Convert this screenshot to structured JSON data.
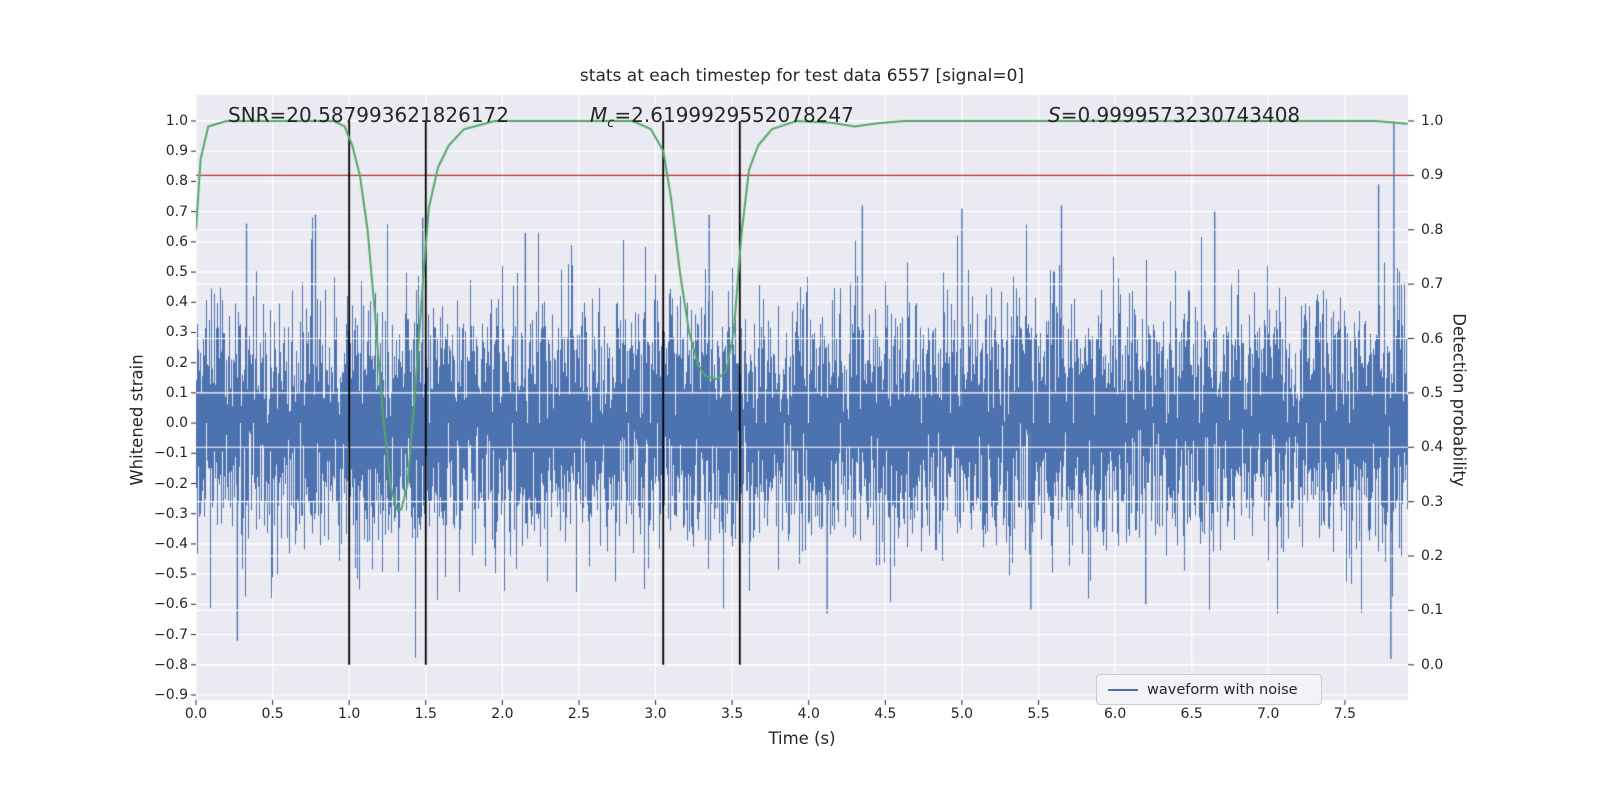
{
  "figure": {
    "title": "stats at each timestep for test data 6557 [signal=0]"
  },
  "axes": {
    "xlabel": "Time (s)",
    "ylabel_left": "Whitened strain",
    "ylabel_right": "Detection probability"
  },
  "annotations": {
    "snr": "SNR=20.587993621826172",
    "mc": {
      "var": "M",
      "sub": "c",
      "rest": "=2.6199929552078247"
    },
    "s": {
      "var": "S",
      "rest": "=0.9999573230743408"
    }
  },
  "legend": {
    "label": "waveform with noise",
    "color": "#4c72b0"
  },
  "chart_data": {
    "type": "line",
    "title": "stats at each timestep for test data 6557 [signal=0]",
    "xlabel": "Time (s)",
    "ylabel_left": "Whitened strain",
    "ylabel_right": "Detection probability",
    "xlim": [
      0.0,
      7.91
    ],
    "ylim_left": [
      -0.917,
      1.086
    ],
    "ylim_right_maps_to_left": [
      -0.8,
      1.0
    ],
    "grid": {
      "color": "#ffffff",
      "background": "#eaeaf2",
      "grid_on": true
    },
    "x_ticks": {
      "values": [
        0.0,
        0.5,
        1.0,
        1.5,
        2.0,
        2.5,
        3.0,
        3.5,
        4.0,
        4.5,
        5.0,
        5.5,
        6.0,
        6.5,
        7.0,
        7.5
      ],
      "labels": [
        "0.0",
        "0.5",
        "1.0",
        "1.5",
        "2.0",
        "2.5",
        "3.0",
        "3.5",
        "4.0",
        "4.5",
        "5.0",
        "5.5",
        "6.0",
        "6.5",
        "7.0",
        "7.5"
      ]
    },
    "y_ticks_left": {
      "values": [
        1.0,
        0.9,
        0.8,
        0.7,
        0.6,
        0.5,
        0.4,
        0.3,
        0.2,
        0.1,
        0.0,
        -0.1,
        -0.2,
        -0.3,
        -0.4,
        -0.5,
        -0.6,
        -0.7,
        -0.8,
        -0.9
      ],
      "labels": [
        "1.0",
        "0.9",
        "0.8",
        "0.7",
        "0.6",
        "0.5",
        "0.4",
        "0.3",
        "0.2",
        "0.1",
        "0.0",
        "−0.1",
        "−0.2",
        "−0.3",
        "−0.4",
        "−0.5",
        "−0.6",
        "−0.7",
        "−0.8",
        "−0.9"
      ]
    },
    "y_ticks_right": {
      "values": [
        1.0,
        0.9,
        0.8,
        0.7,
        0.6,
        0.5,
        0.4,
        0.3,
        0.2,
        0.1,
        0.0
      ],
      "labels": [
        "1.0",
        "0.9",
        "0.8",
        "0.7",
        "0.6",
        "0.5",
        "0.4",
        "0.3",
        "0.2",
        "0.1",
        "0.0"
      ]
    },
    "threshold_line": {
      "axis": "right",
      "value": 0.9,
      "color": "#b5322f"
    },
    "event_marker_lines": {
      "x": [
        1.0,
        1.5,
        3.05,
        3.55
      ],
      "color": "#000000",
      "span_right": [
        0.0,
        1.0
      ]
    },
    "series": [
      {
        "name": "waveform with noise",
        "type": "noise_band",
        "axis": "left",
        "color": "#4c72b0",
        "seed": 6557,
        "std": 0.19,
        "samples_per_column": 6,
        "extreme_spikes": [
          [
            0.27,
            -0.72
          ],
          [
            0.33,
            0.66
          ],
          [
            0.78,
            0.69
          ],
          [
            1.48,
            0.68
          ],
          [
            2.15,
            0.63
          ],
          [
            3.35,
            0.69
          ],
          [
            4.12,
            -0.63
          ],
          [
            4.35,
            0.72
          ],
          [
            5.0,
            0.71
          ],
          [
            5.45,
            -0.62
          ],
          [
            5.65,
            0.72
          ],
          [
            6.2,
            -0.6
          ],
          [
            6.65,
            0.7
          ],
          [
            7.72,
            0.79
          ],
          [
            7.8,
            -0.78
          ],
          [
            7.82,
            1.0
          ]
        ]
      },
      {
        "name": "detection probability",
        "type": "line",
        "axis": "right",
        "color": "#55a868",
        "points": [
          [
            0.0,
            0.8
          ],
          [
            0.03,
            0.93
          ],
          [
            0.08,
            0.99
          ],
          [
            0.2,
            1.0
          ],
          [
            0.9,
            1.0
          ],
          [
            0.97,
            0.99
          ],
          [
            1.02,
            0.955
          ],
          [
            1.07,
            0.9
          ],
          [
            1.12,
            0.8
          ],
          [
            1.17,
            0.64
          ],
          [
            1.22,
            0.46
          ],
          [
            1.27,
            0.33
          ],
          [
            1.31,
            0.287
          ],
          [
            1.34,
            0.285
          ],
          [
            1.38,
            0.33
          ],
          [
            1.43,
            0.5
          ],
          [
            1.48,
            0.7
          ],
          [
            1.52,
            0.84
          ],
          [
            1.58,
            0.915
          ],
          [
            1.65,
            0.955
          ],
          [
            1.75,
            0.985
          ],
          [
            1.95,
            1.0
          ],
          [
            2.85,
            1.0
          ],
          [
            2.97,
            0.985
          ],
          [
            3.05,
            0.945
          ],
          [
            3.1,
            0.86
          ],
          [
            3.16,
            0.72
          ],
          [
            3.22,
            0.61
          ],
          [
            3.28,
            0.55
          ],
          [
            3.33,
            0.53
          ],
          [
            3.4,
            0.525
          ],
          [
            3.46,
            0.54
          ],
          [
            3.51,
            0.61
          ],
          [
            3.56,
            0.79
          ],
          [
            3.61,
            0.91
          ],
          [
            3.67,
            0.955
          ],
          [
            3.76,
            0.985
          ],
          [
            3.92,
            1.0
          ],
          [
            4.15,
            0.997
          ],
          [
            4.3,
            0.99
          ],
          [
            4.45,
            0.996
          ],
          [
            4.62,
            1.0
          ],
          [
            7.7,
            1.0
          ],
          [
            7.91,
            0.995
          ]
        ]
      }
    ],
    "legend": {
      "labels": [
        "waveform with noise"
      ],
      "loc": "lower right"
    }
  }
}
